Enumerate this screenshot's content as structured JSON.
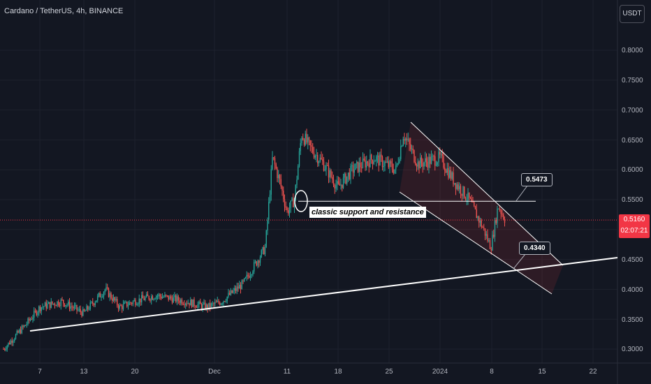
{
  "header": {
    "title": "Cardano / TetherUS, 4h, BINANCE",
    "currency": "USDT"
  },
  "price": {
    "last": "0.5160",
    "countdown": "02:07:21"
  },
  "annotations": {
    "support_label": "classic support and resistance",
    "callout_upper": "0.5473",
    "callout_lower": "0.4340"
  },
  "colors": {
    "background": "#131722",
    "up": "#26a69a",
    "down": "#ef5350",
    "price_line": "#f23645",
    "grid": "#1e222d"
  },
  "chart_data": {
    "type": "candlestick",
    "title": "Cardano / TetherUS, 4h, BINANCE",
    "ylim": [
      0.28,
      0.84
    ],
    "y_ticks": [
      "0.8000",
      "0.7500",
      "0.7000",
      "0.6500",
      "0.6000",
      "0.5500",
      "0.4500",
      "0.4000",
      "0.3500",
      "0.3000"
    ],
    "x_ticks": [
      "7",
      "13",
      "20",
      "Dec",
      "11",
      "18",
      "25",
      "2024",
      "8",
      "15",
      "22"
    ],
    "last_price": 0.516,
    "levels": {
      "support_resistance": 0.5473,
      "trendline_touch": 0.434
    },
    "approx_path": [
      {
        "date": "Nov 2",
        "price": 0.3
      },
      {
        "date": "Nov 5",
        "price": 0.34
      },
      {
        "date": "Nov 7",
        "price": 0.37
      },
      {
        "date": "Nov 10",
        "price": 0.38
      },
      {
        "date": "Nov 13",
        "price": 0.36
      },
      {
        "date": "Nov 16",
        "price": 0.4
      },
      {
        "date": "Nov 18",
        "price": 0.37
      },
      {
        "date": "Nov 20",
        "price": 0.38
      },
      {
        "date": "Nov 23",
        "price": 0.39
      },
      {
        "date": "Nov 27",
        "price": 0.38
      },
      {
        "date": "Nov 30",
        "price": 0.37
      },
      {
        "date": "Dec 2",
        "price": 0.38
      },
      {
        "date": "Dec 5",
        "price": 0.41
      },
      {
        "date": "Dec 8",
        "price": 0.47
      },
      {
        "date": "Dec 9",
        "price": 0.62
      },
      {
        "date": "Dec 10",
        "price": 0.58
      },
      {
        "date": "Dec 11",
        "price": 0.53
      },
      {
        "date": "Dec 12",
        "price": 0.55
      },
      {
        "date": "Dec 13",
        "price": 0.66
      },
      {
        "date": "Dec 14",
        "price": 0.64
      },
      {
        "date": "Dec 16",
        "price": 0.61
      },
      {
        "date": "Dec 18",
        "price": 0.57
      },
      {
        "date": "Dec 20",
        "price": 0.6
      },
      {
        "date": "Dec 23",
        "price": 0.62
      },
      {
        "date": "Dec 26",
        "price": 0.6
      },
      {
        "date": "Dec 27",
        "price": 0.66
      },
      {
        "date": "Dec 29",
        "price": 0.61
      },
      {
        "date": "Jan 1",
        "price": 0.62
      },
      {
        "date": "Jan 3",
        "price": 0.58
      },
      {
        "date": "Jan 5",
        "price": 0.55
      },
      {
        "date": "Jan 7",
        "price": 0.5
      },
      {
        "date": "Jan 8",
        "price": 0.47
      },
      {
        "date": "Jan 9",
        "price": 0.54
      },
      {
        "date": "Jan 10",
        "price": 0.516
      }
    ]
  }
}
